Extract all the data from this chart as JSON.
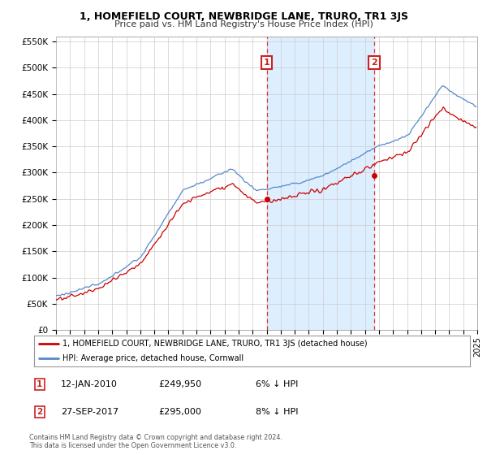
{
  "title": "1, HOMEFIELD COURT, NEWBRIDGE LANE, TRURO, TR1 3JS",
  "subtitle": "Price paid vs. HM Land Registry's House Price Index (HPI)",
  "legend_line1": "1, HOMEFIELD COURT, NEWBRIDGE LANE, TRURO, TR1 3JS (detached house)",
  "legend_line2": "HPI: Average price, detached house, Cornwall",
  "annotation1": {
    "label": "1",
    "date": "12-JAN-2010",
    "price": "£249,950",
    "pct": "6% ↓ HPI"
  },
  "annotation2": {
    "label": "2",
    "date": "27-SEP-2017",
    "price": "£295,000",
    "pct": "8% ↓ HPI"
  },
  "footer1": "Contains HM Land Registry data © Crown copyright and database right 2024.",
  "footer2": "This data is licensed under the Open Government Licence v3.0.",
  "ylim": [
    0,
    560000
  ],
  "yticks": [
    0,
    50000,
    100000,
    150000,
    200000,
    250000,
    300000,
    350000,
    400000,
    450000,
    500000,
    550000
  ],
  "red_color": "#cc0000",
  "blue_color": "#5588cc",
  "shade_color": "#ddeeff",
  "annotation_box_color": "#cc2222",
  "vline_color": "#dd3333",
  "grid_color": "#cccccc",
  "bg_color": "#ffffff"
}
